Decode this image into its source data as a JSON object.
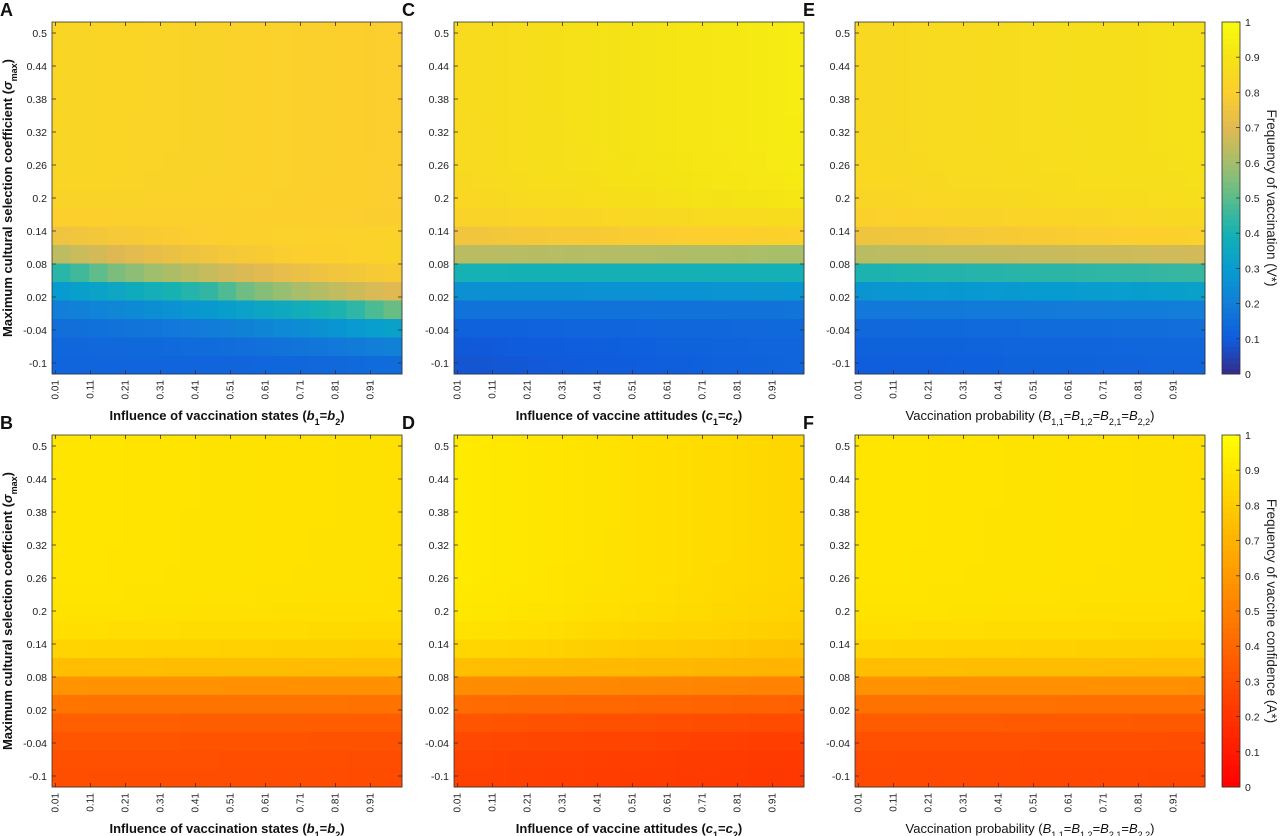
{
  "figure": {
    "panel_letters": [
      "A",
      "B",
      "C",
      "D",
      "E",
      "F"
    ],
    "ylabel": {
      "text": "Maximum cultural selection coefficient (",
      "symbol": "σ",
      "sub": "max",
      "close": ")"
    },
    "xlabels": {
      "b": [
        {
          "t": "Influence of vaccination states ("
        },
        {
          "t": "b",
          "i": true
        },
        {
          "t": "1",
          "sub": true
        },
        {
          "t": "="
        },
        {
          "t": "b",
          "i": true
        },
        {
          "t": "2",
          "sub": true
        },
        {
          "t": ")"
        }
      ],
      "c": [
        {
          "t": "Influence of vaccine attitudes ("
        },
        {
          "t": "c",
          "i": true
        },
        {
          "t": "1",
          "sub": true
        },
        {
          "t": "="
        },
        {
          "t": "c",
          "i": true
        },
        {
          "t": "2",
          "sub": true
        },
        {
          "t": ")"
        }
      ],
      "B": [
        {
          "t": "Vaccination probability ("
        },
        {
          "t": "B",
          "i": true
        },
        {
          "t": "1,1",
          "sub": true
        },
        {
          "t": "="
        },
        {
          "t": "B",
          "i": true
        },
        {
          "t": "1,2",
          "sub": true
        },
        {
          "t": "="
        },
        {
          "t": "B",
          "i": true
        },
        {
          "t": "2,1",
          "sub": true
        },
        {
          "t": "="
        },
        {
          "t": "B",
          "i": true
        },
        {
          "t": "2,2",
          "sub": true
        },
        {
          "t": ")"
        }
      ]
    },
    "colorbars": [
      {
        "label": "Frequency of vaccination (V*)",
        "colormap": "parula",
        "ticks": [
          "0",
          "0.1",
          "0.2",
          "0.3",
          "0.4",
          "0.5",
          "0.6",
          "0.7",
          "0.8",
          "0.9",
          "1"
        ]
      },
      {
        "label": "Frequency of vaccine confidence (A*)",
        "colormap": "autumn",
        "ticks": [
          "0",
          "0.1",
          "0.2",
          "0.3",
          "0.4",
          "0.5",
          "0.6",
          "0.7",
          "0.8",
          "0.9",
          "1"
        ]
      }
    ]
  },
  "chart_data": [
    {
      "panel": "A",
      "type": "heatmap",
      "xlabel_key": "b",
      "ylabel_shown": true,
      "colormap": "parula",
      "zlim": [
        0,
        1
      ],
      "x_ticks": [
        "0.01",
        "0.11",
        "0.21",
        "0.31",
        "0.41",
        "0.51",
        "0.61",
        "0.71",
        "0.81",
        "0.91"
      ],
      "y_ticks": [
        "-0.1",
        "-0.04",
        "0.02",
        "0.08",
        "0.14",
        "0.2",
        "0.26",
        "0.32",
        "0.38",
        "0.44",
        "0.5"
      ],
      "xlim": [
        0,
        1
      ],
      "ylim": [
        -0.12,
        0.52
      ],
      "z_model": {
        "low": 0.12,
        "mid": 0.48,
        "high": 0.84,
        "x_shift": 0.08,
        "x_tilt": -0.04,
        "row_tilt": 0.03
      }
    },
    {
      "panel": "B",
      "type": "heatmap",
      "xlabel_key": "b",
      "ylabel_shown": true,
      "colormap": "autumn",
      "zlim": [
        0,
        1
      ],
      "x_ticks": [
        "0.01",
        "0.11",
        "0.21",
        "0.31",
        "0.41",
        "0.51",
        "0.61",
        "0.71",
        "0.81",
        "0.91"
      ],
      "y_ticks": [
        "-0.1",
        "-0.04",
        "0.02",
        "0.08",
        "0.14",
        "0.2",
        "0.26",
        "0.32",
        "0.38",
        "0.44",
        "0.5"
      ],
      "xlim": [
        0,
        1
      ],
      "ylim": [
        -0.12,
        0.52
      ],
      "z_model": {
        "low": 0.3,
        "mid": 0.62,
        "high": 0.9,
        "x_shift": 0.0,
        "x_tilt": -0.02,
        "row_tilt": 0.0
      }
    },
    {
      "panel": "C",
      "type": "heatmap",
      "xlabel_key": "c",
      "ylabel_shown": false,
      "colormap": "parula",
      "zlim": [
        0,
        1
      ],
      "x_ticks": [
        "0.01",
        "0.11",
        "0.21",
        "0.31",
        "0.41",
        "0.51",
        "0.61",
        "0.71",
        "0.81",
        "0.91"
      ],
      "y_ticks": [
        "-0.1",
        "-0.04",
        "0.02",
        "0.08",
        "0.14",
        "0.2",
        "0.26",
        "0.32",
        "0.38",
        "0.44",
        "0.5"
      ],
      "xlim": [
        0,
        1
      ],
      "ylim": [
        -0.12,
        0.52
      ],
      "z_model": {
        "low": 0.08,
        "mid": 0.45,
        "high": 0.86,
        "x_shift": -0.02,
        "x_tilt": 0.08,
        "row_tilt": 0.04
      }
    },
    {
      "panel": "D",
      "type": "heatmap",
      "xlabel_key": "c",
      "ylabel_shown": false,
      "colormap": "autumn",
      "zlim": [
        0,
        1
      ],
      "x_ticks": [
        "0.01",
        "0.11",
        "0.21",
        "0.31",
        "0.41",
        "0.51",
        "0.61",
        "0.71",
        "0.81",
        "0.91"
      ],
      "y_ticks": [
        "-0.1",
        "-0.04",
        "0.02",
        "0.08",
        "0.14",
        "0.2",
        "0.26",
        "0.32",
        "0.38",
        "0.44",
        "0.5"
      ],
      "xlim": [
        0,
        1
      ],
      "ylim": [
        -0.12,
        0.52
      ],
      "z_model": {
        "low": 0.25,
        "mid": 0.6,
        "high": 0.92,
        "x_shift": 0.0,
        "x_tilt": -0.08,
        "row_tilt": 0.0
      }
    },
    {
      "panel": "E",
      "type": "heatmap",
      "xlabel_key": "B",
      "ylabel_shown": false,
      "colormap": "parula",
      "zlim": [
        0,
        1
      ],
      "x_ticks": [
        "0.01",
        "0.11",
        "0.21",
        "0.31",
        "0.41",
        "0.51",
        "0.61",
        "0.71",
        "0.81",
        "0.91"
      ],
      "y_ticks": [
        "-0.1",
        "-0.04",
        "0.02",
        "0.08",
        "0.14",
        "0.2",
        "0.26",
        "0.32",
        "0.38",
        "0.44",
        "0.5"
      ],
      "xlim": [
        0,
        1
      ],
      "ylim": [
        -0.12,
        0.52
      ],
      "z_model": {
        "low": 0.1,
        "mid": 0.46,
        "high": 0.85,
        "x_shift": 0.0,
        "x_tilt": 0.04,
        "row_tilt": 0.02
      }
    },
    {
      "panel": "F",
      "type": "heatmap",
      "xlabel_key": "B",
      "ylabel_shown": false,
      "colormap": "autumn",
      "zlim": [
        0,
        1
      ],
      "x_ticks": [
        "0.01",
        "0.11",
        "0.21",
        "0.31",
        "0.41",
        "0.51",
        "0.61",
        "0.71",
        "0.81",
        "0.91"
      ],
      "y_ticks": [
        "-0.1",
        "-0.04",
        "0.02",
        "0.08",
        "0.14",
        "0.2",
        "0.26",
        "0.32",
        "0.38",
        "0.44",
        "0.5"
      ],
      "xlim": [
        0,
        1
      ],
      "ylim": [
        -0.12,
        0.52
      ],
      "z_model": {
        "low": 0.28,
        "mid": 0.62,
        "high": 0.9,
        "x_shift": 0.0,
        "x_tilt": -0.02,
        "row_tilt": 0.0
      }
    }
  ]
}
